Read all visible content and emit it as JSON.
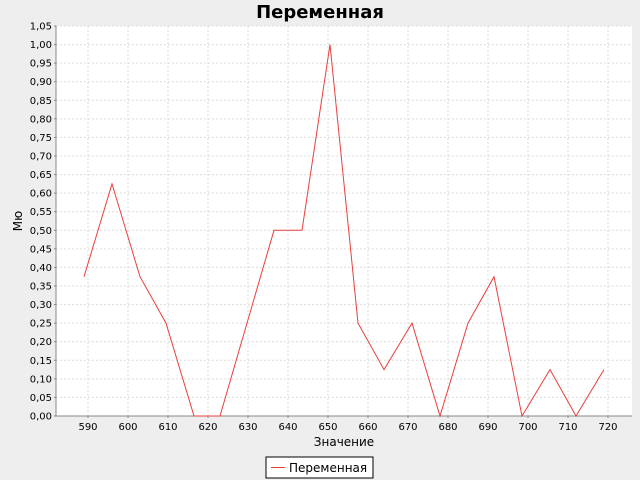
{
  "chart_data": {
    "type": "line",
    "title": "Переменная",
    "xlabel": "Значение",
    "ylabel": "Мю",
    "xlim": [
      582,
      726
    ],
    "ylim": [
      0,
      1.05
    ],
    "xticks": [
      590,
      600,
      610,
      620,
      630,
      640,
      650,
      660,
      670,
      680,
      690,
      700,
      710,
      720
    ],
    "yticks": [
      "0,00",
      "0,05",
      "0,10",
      "0,15",
      "0,20",
      "0,25",
      "0,30",
      "0,35",
      "0,40",
      "0,45",
      "0,50",
      "0,55",
      "0,60",
      "0,65",
      "0,70",
      "0,75",
      "0,80",
      "0,85",
      "0,90",
      "0,95",
      "1,00",
      "1,05"
    ],
    "grid": true,
    "legend_position": "bottom",
    "series": [
      {
        "name": "Переменная",
        "color": "#e8403e",
        "points": [
          [
            589,
            0.375
          ],
          [
            596,
            0.625
          ],
          [
            603,
            0.375
          ],
          [
            609.5,
            0.25
          ],
          [
            616.5,
            0.0
          ],
          [
            623,
            0.0
          ],
          [
            636.5,
            0.5
          ],
          [
            643.5,
            0.5
          ],
          [
            650.5,
            1.0
          ],
          [
            657.5,
            0.25
          ],
          [
            664,
            0.125
          ],
          [
            671,
            0.25
          ],
          [
            678,
            0.0
          ],
          [
            685,
            0.25
          ],
          [
            691.5,
            0.375
          ],
          [
            698.5,
            0.0
          ],
          [
            705.5,
            0.125
          ],
          [
            712,
            0.0
          ],
          [
            719,
            0.125
          ]
        ]
      }
    ]
  },
  "colors": {
    "background": "#eeeeee",
    "plot_background": "#ffffff",
    "grid": "#dcdcdc",
    "axis": "#888888"
  }
}
